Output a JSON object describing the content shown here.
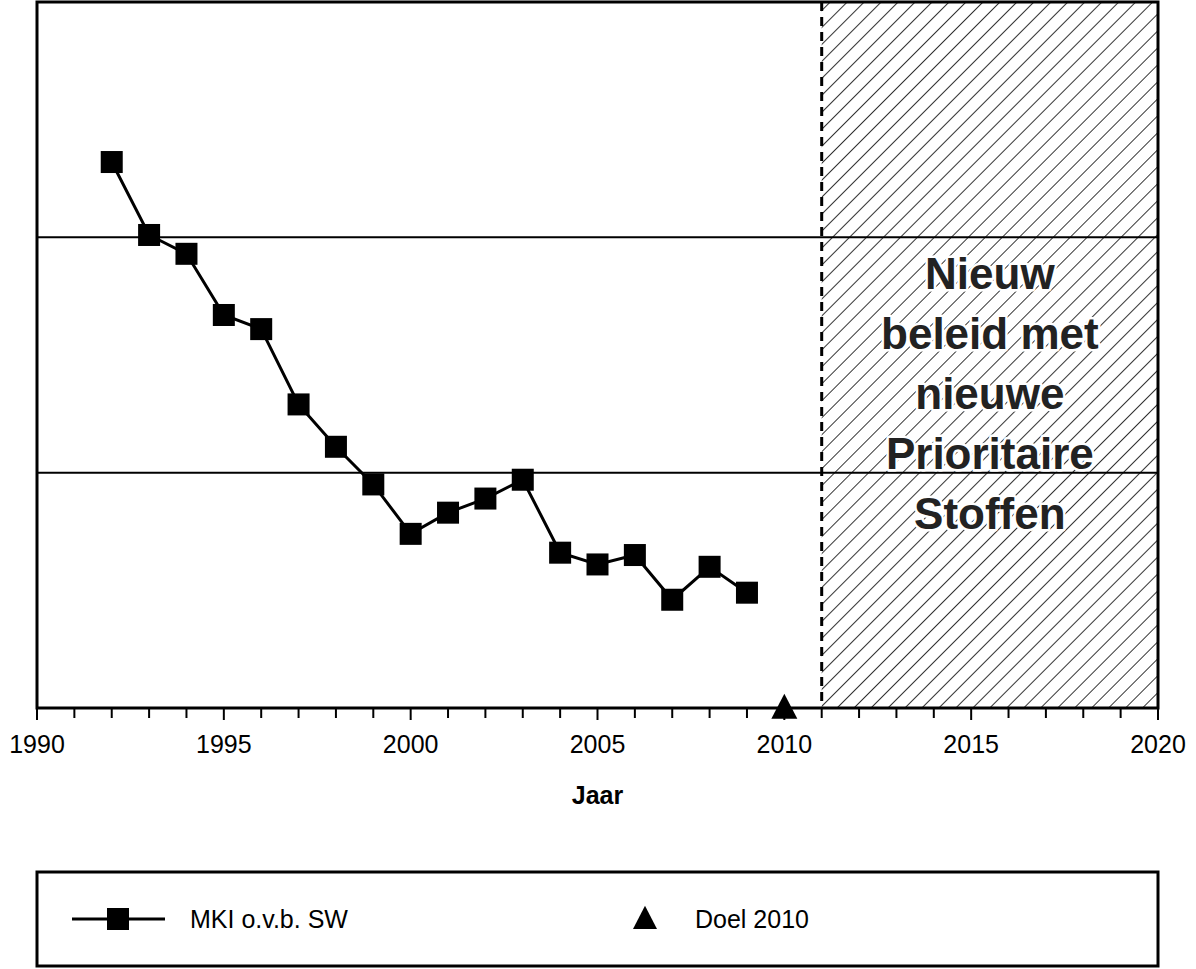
{
  "chart_data": {
    "type": "line",
    "x_label": "Jaar",
    "xlim": [
      1990,
      2020
    ],
    "xticks": [
      1990,
      1995,
      2000,
      2005,
      2010,
      2015,
      2020
    ],
    "ylim": [
      0,
      3
    ],
    "yticks": [
      0,
      1,
      2,
      3
    ],
    "grid": "y",
    "tick_labels": "x",
    "legend": "bottom",
    "series": [
      {
        "name": "MKI o.v.b. SW",
        "color": "#000000",
        "marker": "square",
        "line_style": "solid",
        "x": [
          1992,
          1993,
          1994,
          1995,
          1996,
          1997,
          1998,
          1999,
          2000,
          2001,
          2002,
          2003,
          2004,
          2005,
          2006,
          2007,
          2008,
          2009
        ],
        "values": [
          2.32,
          2.01,
          1.93,
          1.67,
          1.61,
          1.29,
          1.11,
          0.95,
          0.74,
          0.83,
          0.89,
          0.97,
          0.66,
          0.61,
          0.65,
          0.46,
          0.6,
          0.49
        ]
      },
      {
        "name": "Doel 2010",
        "type": "scatter",
        "color": "#000000",
        "marker": "triangle",
        "x": [
          2010
        ],
        "values": [
          0
        ]
      }
    ],
    "annotations": [
      {
        "x_start": 2011,
        "x_end": 2020,
        "text_lines": [
          "Nieuw",
          "beleid met",
          "nieuwe",
          "Prioritaire",
          "Stoffen"
        ]
      }
    ]
  }
}
